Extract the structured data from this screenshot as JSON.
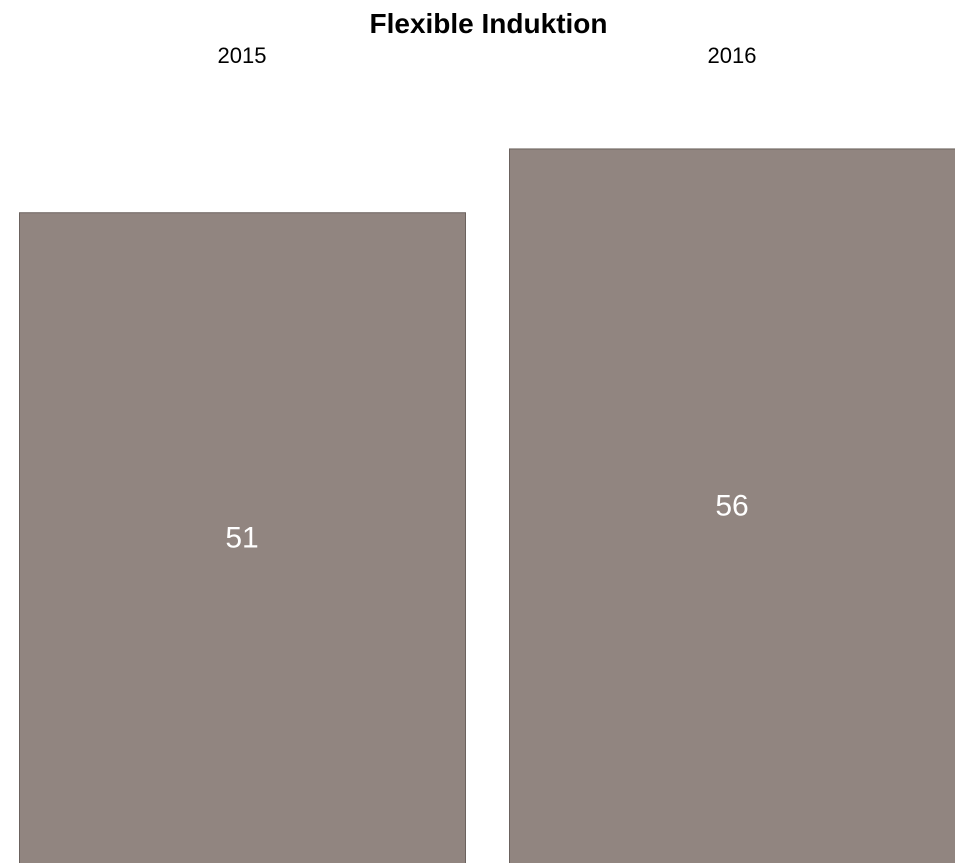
{
  "chart_data": {
    "type": "bar",
    "title": "Flexible Induktion",
    "categories": [
      "2015",
      "2016"
    ],
    "values": [
      51,
      56
    ],
    "bar_color": "#918580",
    "bar_border_color": "#6b625e",
    "label_color": "#ffffff",
    "tick_label_color": "#000000",
    "xlabel": "",
    "ylabel": "",
    "ylim": [
      0,
      62
    ],
    "grid": false,
    "legend": "none"
  }
}
